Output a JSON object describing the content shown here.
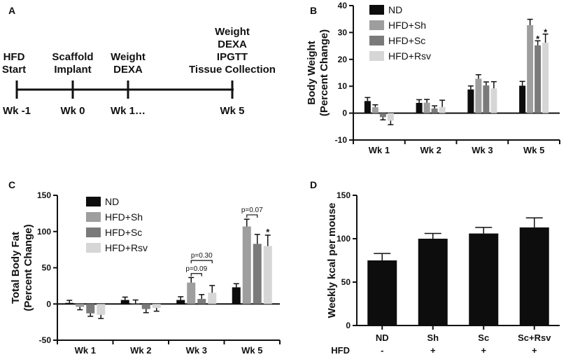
{
  "panel_labels": [
    "A",
    "B",
    "C",
    "D"
  ],
  "colors": {
    "ND": "#0d0d0d",
    "HFD+Sh": "#9e9e9e",
    "HFD+Sc": "#7a7a7a",
    "HFD+Rsv": "#d6d6d6",
    "axis": "#111111"
  },
  "timeline": {
    "top_labels": [
      {
        "lines": [
          "HFD",
          "Start"
        ]
      },
      {
        "lines": [
          "Scaffold",
          "Implant"
        ]
      },
      {
        "lines": [
          "Weight",
          "DEXA"
        ]
      },
      {
        "lines": [
          "Weight",
          "DEXA",
          "IPGTT",
          "Tissue Collection"
        ]
      }
    ],
    "bottom_labels": [
      "Wk -1",
      "Wk 0",
      "Wk 1…",
      "Wk 5"
    ]
  },
  "chart_data": [
    {
      "id": "B",
      "type": "bar",
      "ylabel": "Body Weight",
      "ylabel2": "(Percent Change)",
      "categories": [
        "Wk 1",
        "Wk 2",
        "Wk 3",
        "Wk 5"
      ],
      "ylim": [
        -10,
        40
      ],
      "yticks": [
        -10,
        0,
        10,
        20,
        30,
        40
      ],
      "legend": [
        "ND",
        "HFD+Sh",
        "HFD+Sc",
        "HFD+Rsv"
      ],
      "series": [
        {
          "name": "ND",
          "values": [
            4.5,
            3.8,
            8.8,
            10.2
          ],
          "errors": [
            1.3,
            1.2,
            1.3,
            1.6
          ]
        },
        {
          "name": "HFD+Sh",
          "values": [
            2.2,
            3.9,
            12.8,
            32.7
          ],
          "errors": [
            0.9,
            1.2,
            1.5,
            2.2
          ]
        },
        {
          "name": "HFD+Sc",
          "values": [
            -1.5,
            1.7,
            10.3,
            25.2
          ],
          "errors": [
            1.0,
            1.0,
            1.3,
            1.7
          ]
        },
        {
          "name": "HFD+Rsv",
          "values": [
            -2.8,
            2.3,
            9.2,
            26.2
          ],
          "errors": [
            1.5,
            2.5,
            2.5,
            3.2
          ]
        }
      ],
      "annotations": [
        {
          "text": "*",
          "category": 3,
          "series": 2,
          "y": 27.5
        },
        {
          "text": "*",
          "category": 3,
          "series": 3,
          "y": 30.0
        }
      ]
    },
    {
      "id": "C",
      "type": "bar",
      "ylabel": "Total Body Fat",
      "ylabel2": "(Percent Change)",
      "categories": [
        "Wk 1",
        "Wk 2",
        "Wk 3",
        "Wk 5"
      ],
      "ylim": [
        -50,
        150
      ],
      "yticks": [
        -50,
        0,
        50,
        100,
        150
      ],
      "legend": [
        "ND",
        "HFD+Sh",
        "HFD+Sc",
        "HFD+Rsv"
      ],
      "series": [
        {
          "name": "ND",
          "values": [
            1.5,
            5.5,
            5.5,
            23.0
          ],
          "errors": [
            3.5,
            4.0,
            4.5,
            5.0
          ]
        },
        {
          "name": "HFD+Sh",
          "values": [
            -4.0,
            0.5,
            29.5,
            107.0
          ],
          "errors": [
            4.0,
            5.0,
            7.0,
            10.0
          ]
        },
        {
          "name": "HFD+Sc",
          "values": [
            -13.0,
            -7.0,
            7.0,
            83.0
          ],
          "errors": [
            4.0,
            5.0,
            6.0,
            13.0
          ]
        },
        {
          "name": "HFD+Rsv",
          "values": [
            -15.0,
            -5.5,
            15.5,
            80.0
          ],
          "errors": [
            5.0,
            4.5,
            10.0,
            15.0
          ]
        }
      ],
      "comparisons": [
        {
          "text": "p=0.09",
          "category": 2,
          "from_series": 1,
          "to_series": 2,
          "y": 42
        },
        {
          "text": "p=0.30",
          "category": 2,
          "from_series": 1,
          "to_series": 3,
          "y": 60
        },
        {
          "text": "p=0.07",
          "category": 3,
          "from_series": 1,
          "to_series": 2,
          "y": 123
        }
      ],
      "annotations": [
        {
          "text": "*",
          "category": 3,
          "series": 3,
          "y": 99
        }
      ]
    },
    {
      "id": "D",
      "type": "bar",
      "ylabel": "Weekly kcal per mouse",
      "categories": [
        "ND",
        "Sh",
        "Sc",
        "Sc+Rsv"
      ],
      "ylim": [
        0,
        150
      ],
      "yticks": [
        0,
        50,
        100,
        150
      ],
      "values": [
        75,
        100,
        106,
        113
      ],
      "errors": [
        8,
        6,
        7,
        11
      ],
      "hfd_label": "HFD",
      "hfd_row": [
        "-",
        "+",
        "+",
        "+"
      ]
    }
  ]
}
